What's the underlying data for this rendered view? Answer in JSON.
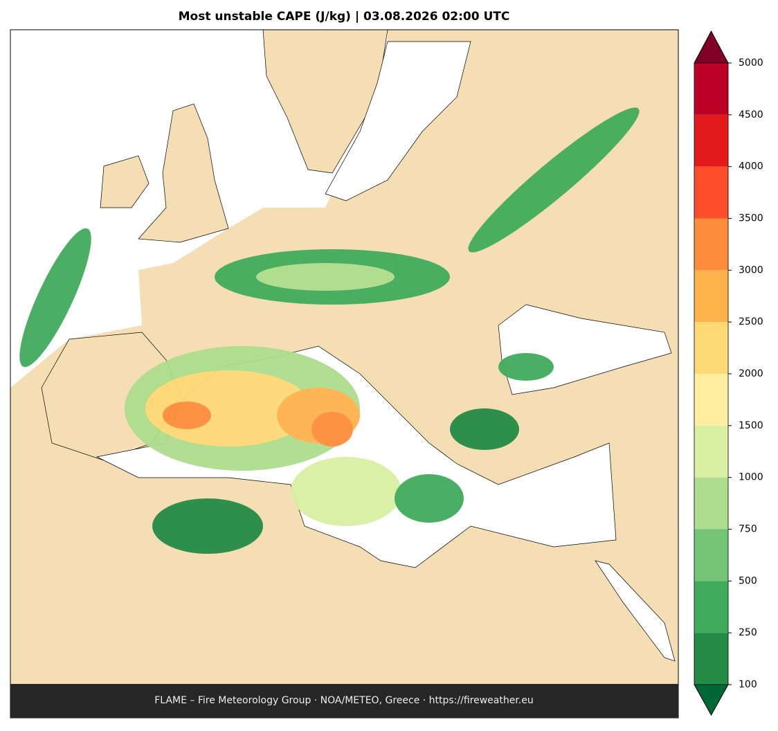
{
  "title": "Most unstable CAPE (J/kg)  |  03.08.2026 02:00 UTC",
  "footer": "FLAME – Fire Meteorology Group · NOA/METEO, Greece · https://fireweather.eu",
  "colorbar": {
    "levels": [
      100,
      250,
      500,
      750,
      1000,
      1500,
      2000,
      2500,
      3000,
      3500,
      4000,
      4500,
      5000
    ],
    "colors": [
      "#238b45",
      "#41ab5d",
      "#74c476",
      "#addd8e",
      "#d9f0a3",
      "#ffeda0",
      "#fed976",
      "#feb24c",
      "#fd8d3c",
      "#fc4e2a",
      "#e31a1c",
      "#bd0026"
    ],
    "under_color": "#006837",
    "over_color": "#800026"
  }
}
